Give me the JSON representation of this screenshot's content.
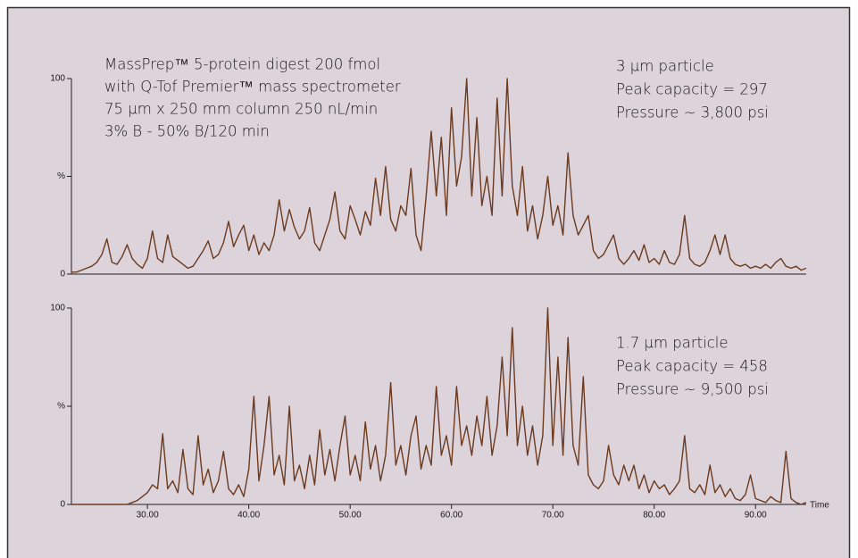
{
  "chart_data": [
    {
      "type": "line",
      "annotations": [
        "MassPrep™ 5-protein digest 200 fmol",
        "with Q-Tof Premier™ mass spectrometer",
        "75 µm x 250 mm column 250 nL/min",
        "3% B - 50% B/120 min",
        "3 µm particle",
        "Peak capacity = 297",
        "Pressure ~ 3,800 psi"
      ],
      "xlim": [
        22.5,
        95
      ],
      "ylim": [
        0,
        100
      ],
      "yticks": [
        0,
        {
          "value": 50,
          "label": "%"
        },
        100
      ],
      "color": "#6b3a1f",
      "x": [
        22.5,
        23,
        23.5,
        24,
        24.5,
        25,
        25.5,
        26,
        26.5,
        27,
        27.5,
        28,
        28.5,
        29,
        29.5,
        30,
        30.5,
        31,
        31.5,
        32,
        32.5,
        33,
        33.5,
        34,
        34.5,
        35,
        35.5,
        36,
        36.5,
        37,
        37.5,
        38,
        38.5,
        39,
        39.5,
        40,
        40.5,
        41,
        41.5,
        42,
        42.5,
        43,
        43.5,
        44,
        44.5,
        45,
        45.5,
        46,
        46.5,
        47,
        47.5,
        48,
        48.5,
        49,
        49.5,
        50,
        50.5,
        51,
        51.5,
        52,
        52.5,
        53,
        53.5,
        54,
        54.5,
        55,
        55.5,
        56,
        56.5,
        57,
        57.5,
        58,
        58.5,
        59,
        59.5,
        60,
        60.5,
        61,
        61.5,
        62,
        62.5,
        63,
        63.5,
        64,
        64.5,
        65,
        65.5,
        66,
        66.5,
        67,
        67.5,
        68,
        68.5,
        69,
        69.5,
        70,
        70.5,
        71,
        71.5,
        72,
        72.5,
        73,
        73.5,
        74,
        74.5,
        75,
        75.5,
        76,
        76.5,
        77,
        77.5,
        78,
        78.5,
        79,
        79.5,
        80,
        80.5,
        81,
        81.5,
        82,
        82.5,
        83,
        83.5,
        84,
        84.5,
        85,
        85.5,
        86,
        86.5,
        87,
        87.5,
        88,
        88.5,
        89,
        89.5,
        90,
        90.5,
        91,
        91.5,
        92,
        92.5,
        93,
        93.5,
        94,
        94.5,
        95
      ],
      "values": [
        1,
        1,
        2,
        3,
        4,
        6,
        10,
        18,
        6,
        5,
        9,
        15,
        8,
        5,
        3,
        8,
        22,
        8,
        6,
        20,
        9,
        7,
        5,
        3,
        4,
        8,
        12,
        17,
        8,
        10,
        16,
        27,
        14,
        20,
        25,
        12,
        20,
        10,
        16,
        12,
        20,
        38,
        22,
        33,
        24,
        18,
        22,
        34,
        16,
        12,
        20,
        28,
        42,
        22,
        18,
        35,
        28,
        20,
        32,
        25,
        49,
        30,
        55,
        28,
        22,
        35,
        30,
        54,
        20,
        12,
        40,
        73,
        40,
        70,
        30,
        85,
        45,
        60,
        100,
        40,
        80,
        35,
        50,
        30,
        90,
        40,
        100,
        45,
        30,
        55,
        22,
        35,
        18,
        30,
        50,
        25,
        35,
        20,
        62,
        30,
        20,
        25,
        30,
        12,
        8,
        10,
        15,
        20,
        8,
        5,
        8,
        12,
        7,
        15,
        6,
        8,
        5,
        12,
        6,
        5,
        10,
        30,
        8,
        5,
        4,
        6,
        12,
        20,
        10,
        20,
        8,
        5,
        4,
        5,
        3,
        4,
        3,
        5,
        3,
        6,
        8,
        4,
        3,
        4,
        2,
        3
      ]
    },
    {
      "type": "line",
      "annotations": [
        "1.7 µm particle",
        "Peak capacity = 458",
        "Pressure ~ 9,500 psi"
      ],
      "xlabel": "Time",
      "xlim": [
        22.5,
        95
      ],
      "xticks": [
        {
          "value": 30,
          "label": "30.00"
        },
        {
          "value": 40,
          "label": "40.00"
        },
        {
          "value": 50,
          "label": "50.00"
        },
        {
          "value": 60,
          "label": "60.00"
        },
        {
          "value": 70,
          "label": "70.00"
        },
        {
          "value": 80,
          "label": "80.00"
        },
        {
          "value": 90,
          "label": "90.00"
        }
      ],
      "ylim": [
        0,
        100
      ],
      "yticks": [
        0,
        {
          "value": 50,
          "label": "%"
        },
        100
      ],
      "color": "#6b3a1f",
      "x": [
        22.5,
        23,
        23.5,
        24,
        24.5,
        25,
        25.5,
        26,
        26.5,
        27,
        27.5,
        28,
        28.5,
        29,
        29.5,
        30,
        30.5,
        31,
        31.5,
        32,
        32.5,
        33,
        33.5,
        34,
        34.5,
        35,
        35.5,
        36,
        36.5,
        37,
        37.5,
        38,
        38.5,
        39,
        39.5,
        40,
        40.5,
        41,
        41.5,
        42,
        42.5,
        43,
        43.5,
        44,
        44.5,
        45,
        45.5,
        46,
        46.5,
        47,
        47.5,
        48,
        48.5,
        49,
        49.5,
        50,
        50.5,
        51,
        51.5,
        52,
        52.5,
        53,
        53.5,
        54,
        54.5,
        55,
        55.5,
        56,
        56.5,
        57,
        57.5,
        58,
        58.5,
        59,
        59.5,
        60,
        60.5,
        61,
        61.5,
        62,
        62.5,
        63,
        63.5,
        64,
        64.5,
        65,
        65.5,
        66,
        66.5,
        67,
        67.5,
        68,
        68.5,
        69,
        69.5,
        70,
        70.5,
        71,
        71.5,
        72,
        72.5,
        73,
        73.5,
        74,
        74.5,
        75,
        75.5,
        76,
        76.5,
        77,
        77.5,
        78,
        78.5,
        79,
        79.5,
        80,
        80.5,
        81,
        81.5,
        82,
        82.5,
        83,
        83.5,
        84,
        84.5,
        85,
        85.5,
        86,
        86.5,
        87,
        87.5,
        88,
        88.5,
        89,
        89.5,
        90,
        90.5,
        91,
        91.5,
        92,
        92.5,
        93,
        93.5,
        94,
        94.5,
        95
      ],
      "values": [
        0,
        0,
        0,
        0,
        0,
        0,
        0,
        0,
        0,
        0,
        0,
        0,
        1,
        2,
        4,
        6,
        10,
        8,
        36,
        8,
        12,
        6,
        28,
        8,
        5,
        35,
        10,
        18,
        6,
        12,
        27,
        8,
        5,
        10,
        4,
        18,
        55,
        12,
        30,
        55,
        15,
        25,
        10,
        50,
        12,
        20,
        8,
        25,
        10,
        38,
        15,
        28,
        12,
        30,
        45,
        15,
        25,
        12,
        42,
        18,
        30,
        12,
        25,
        62,
        20,
        30,
        15,
        35,
        45,
        18,
        30,
        20,
        60,
        25,
        35,
        20,
        60,
        30,
        40,
        25,
        45,
        30,
        55,
        25,
        40,
        75,
        35,
        90,
        30,
        50,
        25,
        40,
        20,
        35,
        100,
        30,
        75,
        25,
        85,
        30,
        20,
        65,
        15,
        10,
        8,
        12,
        30,
        15,
        10,
        20,
        12,
        20,
        8,
        15,
        6,
        12,
        8,
        10,
        5,
        8,
        12,
        35,
        8,
        6,
        10,
        5,
        20,
        6,
        10,
        4,
        8,
        3,
        2,
        5,
        15,
        3,
        2,
        1,
        4,
        2,
        1,
        27,
        3,
        1,
        0,
        1
      ]
    }
  ]
}
